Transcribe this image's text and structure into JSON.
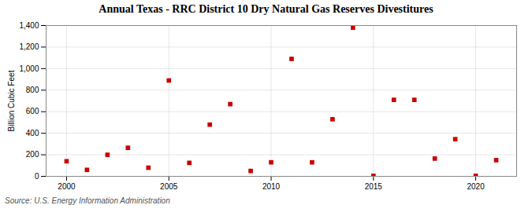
{
  "chart_data": {
    "type": "scatter",
    "title": "Annual Texas - RRC District 10 Dry Natural Gas Reserves Divestitures",
    "ylabel": "Billion Cubic Feet",
    "source": "Source: U.S. Energy Information Administration",
    "x": [
      2000,
      2001,
      2002,
      2003,
      2004,
      2005,
      2006,
      2007,
      2008,
      2009,
      2010,
      2011,
      2012,
      2013,
      2014,
      2015,
      2016,
      2017,
      2018,
      2019,
      2020,
      2021
    ],
    "values": [
      140,
      60,
      200,
      265,
      80,
      890,
      125,
      480,
      670,
      50,
      130,
      1090,
      130,
      530,
      1380,
      5,
      710,
      710,
      165,
      345,
      5,
      150
    ],
    "color": "#cc0000",
    "marker": "square",
    "xlim": [
      1999,
      2022
    ],
    "xticks": [
      2000,
      2005,
      2010,
      2015,
      2020
    ],
    "ylim": [
      0,
      1400
    ],
    "yticks": [
      0,
      200,
      400,
      600,
      800,
      {
        "value": 1000,
        "label": "1,000"
      },
      {
        "value": 1200,
        "label": "1,200"
      },
      {
        "value": 1400,
        "label": "1,400"
      }
    ],
    "grid": true
  }
}
